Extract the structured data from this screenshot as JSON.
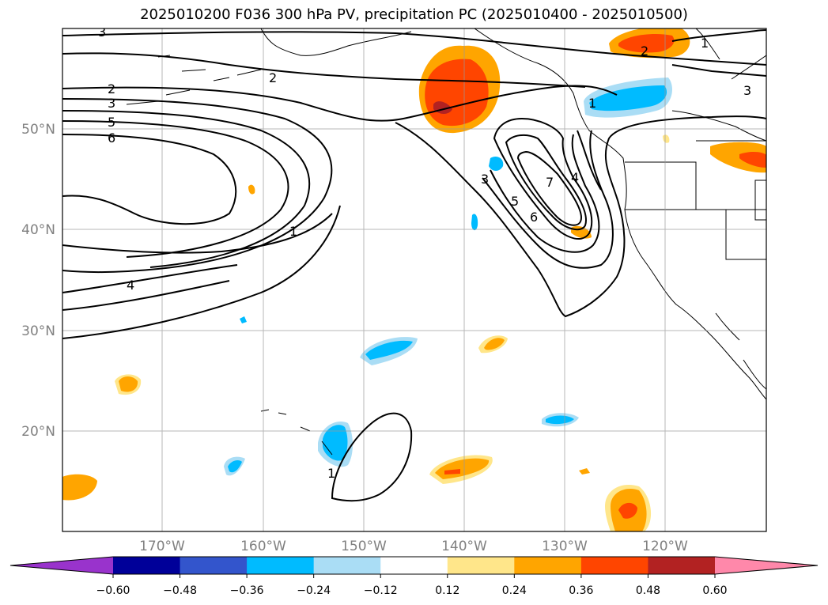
{
  "title": "2025010200 F036 300 hPa PV, precipitation PC (2025010400 - 2025010500)",
  "map": {
    "lon_labels": [
      "170°W",
      "160°W",
      "150°W",
      "140°W",
      "130°W",
      "120°W"
    ],
    "lat_labels": [
      "50°N",
      "40°N",
      "30°N",
      "20°N"
    ],
    "lon_range": [
      -180,
      -110
    ],
    "lat_range": [
      10,
      60
    ],
    "grid": true
  },
  "pv_contour_labels": [
    "3",
    "2",
    "2",
    "3",
    "5",
    "6",
    "4",
    "1",
    "3",
    "5",
    "6",
    "7",
    "4",
    "1",
    "2",
    "1",
    "3",
    "1"
  ],
  "colorbar": {
    "ticks": [
      "−0.60",
      "−0.48",
      "−0.36",
      "−0.24",
      "−0.12",
      "0.12",
      "0.24",
      "0.36",
      "0.48",
      "0.60"
    ],
    "colors": [
      "#9933cc",
      "#000099",
      "#3355cc",
      "#00bbff",
      "#aaddf5",
      "#ffffff",
      "#ffe68a",
      "#ffa500",
      "#ff4500",
      "#b22222",
      "#ff88aa"
    ]
  }
}
